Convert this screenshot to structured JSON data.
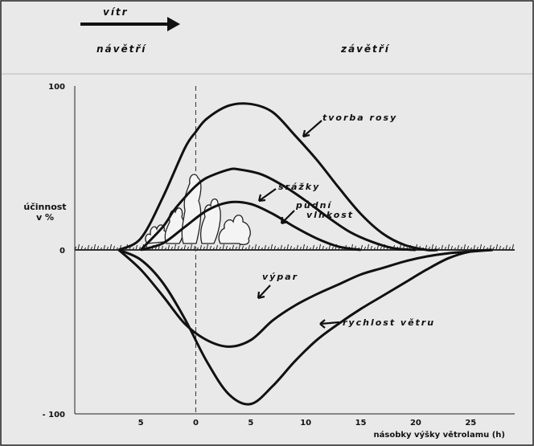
{
  "chart_data": {
    "type": "line",
    "header": {
      "wind": "vítr",
      "windward": "návětří",
      "leeward": "závětří"
    },
    "ylabel": [
      "účinnost",
      "v %"
    ],
    "xlabel": "násobky výšky větrolamu (h)",
    "xlim": [
      -11,
      29
    ],
    "ylim": [
      -100,
      100
    ],
    "x_ticks": [
      {
        "value": -5,
        "label": "5"
      },
      {
        "value": 0,
        "label": "0"
      },
      {
        "value": 5,
        "label": "5"
      },
      {
        "value": 10,
        "label": "10"
      },
      {
        "value": 15,
        "label": "15"
      },
      {
        "value": 20,
        "label": "20"
      },
      {
        "value": 25,
        "label": "25"
      }
    ],
    "y_ticks": [
      {
        "value": 100,
        "label": "100"
      },
      {
        "value": 0,
        "label": "0"
      },
      {
        "value": -100,
        "label": "- 100"
      }
    ],
    "grid": false,
    "vertical_reference_x": 0,
    "series": [
      {
        "name": "tvorba rosy",
        "x": [
          -7,
          -5,
          -3,
          -1,
          0,
          1,
          3,
          5,
          7,
          9,
          11,
          13,
          15,
          17,
          19,
          21,
          22
        ],
        "y": [
          0,
          7,
          32,
          62,
          72,
          80,
          88,
          89,
          84,
          70,
          55,
          38,
          22,
          10,
          3,
          0,
          0
        ]
      },
      {
        "name": "srážky",
        "x": [
          -5,
          -3,
          -2,
          -1,
          0,
          1,
          3,
          4,
          6,
          8,
          10,
          12,
          14,
          16,
          18,
          20
        ],
        "y": [
          0,
          14,
          24,
          32,
          39,
          44,
          49,
          49,
          46,
          39,
          30,
          20,
          11,
          5,
          1,
          0
        ]
      },
      {
        "name": "půdní vlhkost",
        "x": [
          -5,
          -3,
          -1,
          1,
          3,
          5,
          7,
          9,
          11,
          13,
          15
        ],
        "y": [
          0,
          4,
          14,
          24,
          29,
          28,
          22,
          14,
          7,
          2,
          0
        ]
      },
      {
        "name": "výpar",
        "x": [
          -7,
          -5,
          -3,
          -1,
          1,
          3,
          5,
          7,
          9,
          11,
          13,
          15,
          17,
          19,
          21,
          23,
          25,
          27
        ],
        "y": [
          0,
          -12,
          -28,
          -45,
          -55,
          -59,
          -55,
          -43,
          -34,
          -27,
          -21,
          -15,
          -11,
          -7,
          -4,
          -2,
          -1,
          0
        ]
      },
      {
        "name": "rychlost větru",
        "x": [
          -7,
          -5,
          -3,
          -1,
          1,
          3,
          5,
          7,
          9,
          11,
          13,
          15,
          17,
          19,
          21,
          23,
          25,
          27
        ],
        "y": [
          0,
          -6,
          -20,
          -42,
          -68,
          -88,
          -94,
          -83,
          -68,
          -55,
          -45,
          -36,
          -28,
          -20,
          -12,
          -5,
          -1,
          0
        ]
      }
    ],
    "annotations": [
      {
        "text": "tvorba rosy",
        "series": "tvorba rosy"
      },
      {
        "text": "srážky",
        "series": "srážky"
      },
      {
        "text": "půdní",
        "series": "půdní vlhkost"
      },
      {
        "text": "vlhkost",
        "series": "půdní vlhkost"
      },
      {
        "text": "výpar",
        "series": "výpar"
      },
      {
        "text": "rychlost větru",
        "series": "rychlost větru"
      }
    ]
  }
}
